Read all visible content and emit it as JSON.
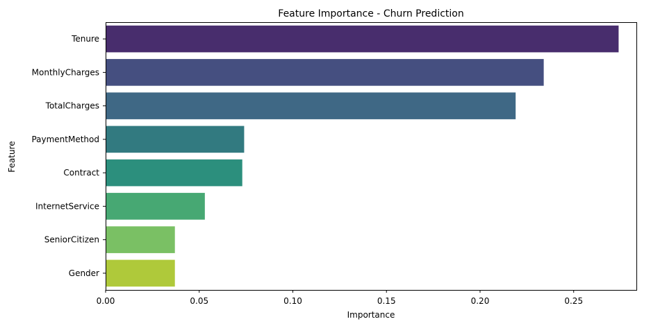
{
  "chart_data": {
    "type": "bar",
    "orientation": "horizontal",
    "title": "Feature Importance - Churn Prediction",
    "xlabel": "Importance",
    "ylabel": "Feature",
    "categories": [
      "Tenure",
      "MonthlyCharges",
      "TotalCharges",
      "PaymentMethod",
      "Contract",
      "InternetService",
      "SeniorCitizen",
      "Gender"
    ],
    "values": [
      0.274,
      0.234,
      0.219,
      0.074,
      0.073,
      0.053,
      0.037,
      0.037
    ],
    "colors": [
      "#482d6d",
      "#454f80",
      "#3f6885",
      "#327a80",
      "#2c8f7d",
      "#47a873",
      "#7ac064",
      "#afc93a"
    ],
    "xlim": [
      0,
      0.2835
    ],
    "xticks": [
      0.0,
      0.05,
      0.1,
      0.15,
      0.2,
      0.25
    ],
    "xtick_labels": [
      "0.00",
      "0.05",
      "0.10",
      "0.15",
      "0.20",
      "0.25"
    ],
    "grid": false,
    "legend": "none"
  }
}
